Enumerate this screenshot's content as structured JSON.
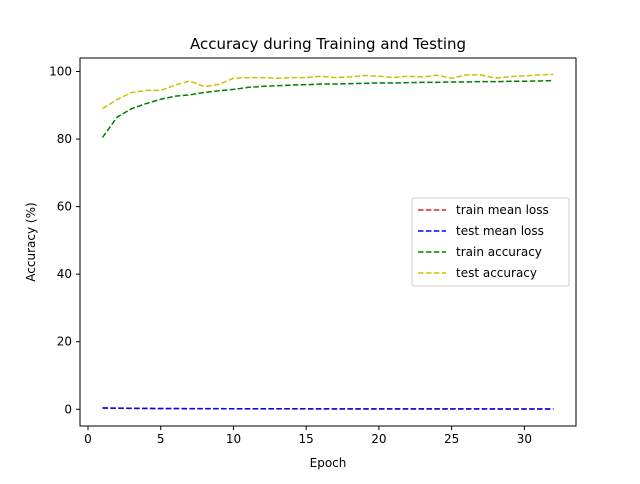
{
  "chart_data": {
    "type": "line",
    "title": "Accuracy during Training and Testing",
    "xlabel": "Epoch",
    "ylabel": "Accuracy (%)",
    "xlim": [
      -0.55,
      33.55
    ],
    "ylim": [
      -4.95,
      104.0
    ],
    "xticks": [
      0,
      5,
      10,
      15,
      20,
      25,
      30
    ],
    "yticks": [
      0,
      20,
      40,
      60,
      80,
      100
    ],
    "grid": false,
    "legend_position": "center-right",
    "x": [
      1,
      2,
      3,
      4,
      5,
      6,
      7,
      8,
      9,
      10,
      11,
      12,
      13,
      14,
      15,
      16,
      17,
      18,
      19,
      20,
      21,
      22,
      23,
      24,
      25,
      26,
      27,
      28,
      29,
      30,
      31,
      32
    ],
    "series": [
      {
        "name": "train mean loss",
        "color": "#d62728",
        "style": "dashed",
        "values": [
          0.35,
          0.3,
          0.25,
          0.22,
          0.2,
          0.18,
          0.17,
          0.16,
          0.15,
          0.14,
          0.13,
          0.13,
          0.12,
          0.12,
          0.11,
          0.11,
          0.1,
          0.1,
          0.1,
          0.09,
          0.09,
          0.09,
          0.09,
          0.08,
          0.08,
          0.08,
          0.08,
          0.08,
          0.07,
          0.07,
          0.07,
          0.07
        ]
      },
      {
        "name": "test mean loss",
        "color": "#0000ff",
        "style": "dashed",
        "values": [
          0.4,
          0.35,
          0.3,
          0.26,
          0.24,
          0.22,
          0.2,
          0.19,
          0.18,
          0.17,
          0.16,
          0.15,
          0.15,
          0.14,
          0.14,
          0.13,
          0.13,
          0.13,
          0.12,
          0.12,
          0.12,
          0.12,
          0.11,
          0.11,
          0.11,
          0.11,
          0.11,
          0.1,
          0.1,
          0.1,
          0.1,
          0.1
        ]
      },
      {
        "name": "train accuracy",
        "color": "#008000",
        "style": "dashed",
        "values": [
          80.5,
          86.5,
          89.0,
          90.5,
          91.8,
          92.7,
          93.1,
          93.8,
          94.3,
          94.7,
          95.3,
          95.6,
          95.8,
          96.0,
          96.1,
          96.3,
          96.3,
          96.4,
          96.5,
          96.6,
          96.6,
          96.7,
          96.8,
          96.8,
          96.9,
          96.9,
          97.0,
          97.0,
          97.1,
          97.1,
          97.2,
          97.3
        ]
      },
      {
        "name": "test accuracy",
        "color": "#cfbf00",
        "style": "dashed",
        "values": [
          89.0,
          91.7,
          93.8,
          94.4,
          94.4,
          96.0,
          97.2,
          95.5,
          96.2,
          98.0,
          98.2,
          98.2,
          98.0,
          98.2,
          98.2,
          98.6,
          98.2,
          98.4,
          98.8,
          98.6,
          98.2,
          98.6,
          98.4,
          98.9,
          98.0,
          99.0,
          99.0,
          98.0,
          98.5,
          98.7,
          99.0,
          99.1
        ]
      }
    ]
  }
}
